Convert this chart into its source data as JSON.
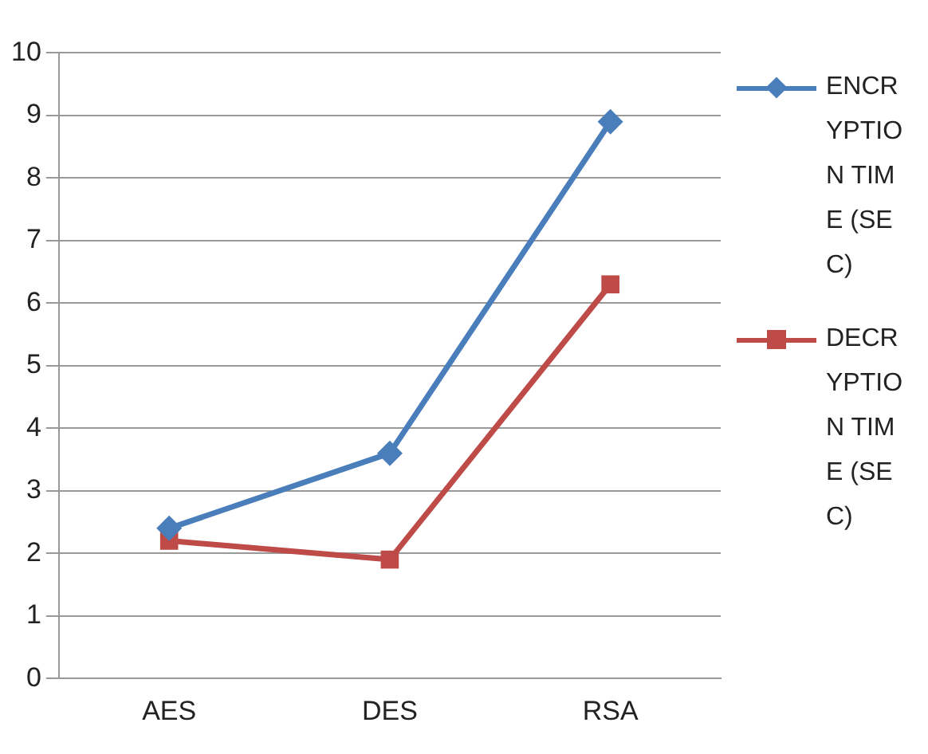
{
  "chart_data": {
    "type": "line",
    "categories": [
      "AES",
      "DES",
      "RSA"
    ],
    "series": [
      {
        "name": "ENCRYPTION TIME (SEC)",
        "color": "#4a7ebb",
        "values": [
          2.4,
          3.6,
          8.9
        ],
        "marker": "diamond"
      },
      {
        "name": "DECRYPTION TIME (SEC)",
        "color": "#be4b48",
        "values": [
          2.2,
          1.9,
          6.3
        ],
        "marker": "square"
      }
    ],
    "ylim": [
      0,
      10
    ],
    "yticks": [
      0,
      1,
      2,
      3,
      4,
      5,
      6,
      7,
      8,
      9,
      10
    ],
    "grid": "y",
    "legend": "right",
    "line_style": "solid"
  }
}
